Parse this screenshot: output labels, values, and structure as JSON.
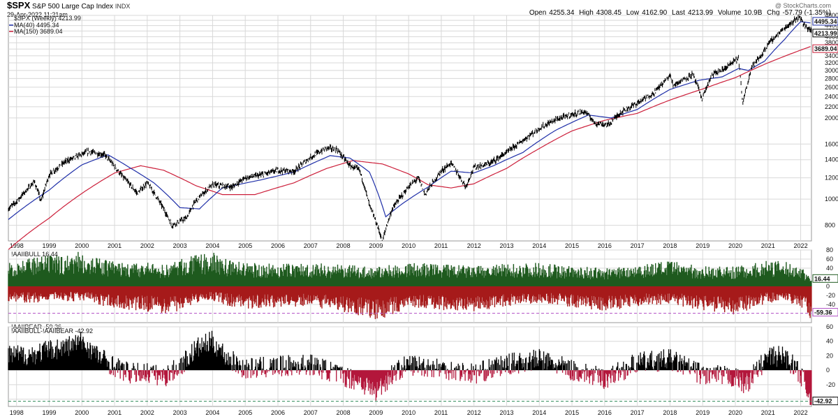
{
  "header": {
    "symbol": "$SPX",
    "name": "S&P 500 Large Cap Index",
    "exchange": "INDX",
    "datetime": "29-Apr-2022 11:21am",
    "watermark": "@ StockCharts.com",
    "ohlc": {
      "open_label": "Open",
      "open": "4255.34",
      "high_label": "High",
      "high": "4308.45",
      "low_label": "Low",
      "low": "4162.90",
      "last_label": "Last",
      "last": "4213.99",
      "volume_label": "Volume",
      "volume": "10.9B",
      "chg_label": "Chg",
      "chg": "-57.79 (-1.35%)"
    }
  },
  "colors": {
    "price": "#000000",
    "ma40": "#1f2fa8",
    "ma150": "#cc1f3a",
    "bull": "#1e5a1e",
    "bear": "#a61a1a",
    "spread_pos": "#000000",
    "spread_neg": "#b3163b",
    "grid": "#d8d8d8",
    "dash_purple": "#b14fc5",
    "dash_green": "#2e8b57"
  },
  "chart_data": [
    {
      "type": "line",
      "panel": "price",
      "scale": "log",
      "ylim": [
        700,
        4800
      ],
      "yticks": [
        800,
        1000,
        1200,
        1400,
        1600,
        2000,
        2200,
        2400,
        2600,
        2800,
        3000,
        3200,
        3400,
        3600,
        3800,
        4000,
        4200,
        4400,
        4600,
        4800
      ],
      "x_years": [
        "1998",
        "1999",
        "2000",
        "2001",
        "2002",
        "2003",
        "2004",
        "2005",
        "2006",
        "2007",
        "2008",
        "2009",
        "2010",
        "2011",
        "2012",
        "2013",
        "2014",
        "2015",
        "2016",
        "2017",
        "2018",
        "2019",
        "2020",
        "2021",
        "2022"
      ],
      "legend": [
        {
          "label": "$SPX (Weekly) 4213.99"
        },
        {
          "label": "MA(40) 4495.34"
        },
        {
          "label": "MA(150) 3689.04"
        }
      ],
      "price_tags": {
        "ma40": "4495.34",
        "last": "4213.99",
        "ma150": "3689.04"
      },
      "series": [
        {
          "name": "$SPX (Weekly)",
          "x": [
            1997.75,
            1998.0,
            1998.55,
            1998.75,
            1999.0,
            1999.5,
            2000.2,
            2000.7,
            2001.2,
            2001.7,
            2002.0,
            2002.55,
            2002.75,
            2003.2,
            2003.5,
            2004.0,
            2004.6,
            2005.0,
            2005.5,
            2006.0,
            2006.5,
            2007.0,
            2007.5,
            2007.8,
            2008.2,
            2008.5,
            2008.8,
            2009.2,
            2009.5,
            2010.0,
            2010.3,
            2010.5,
            2011.0,
            2011.3,
            2011.75,
            2012.0,
            2012.5,
            2013.0,
            2013.5,
            2014.0,
            2014.5,
            2015.0,
            2015.4,
            2015.7,
            2016.1,
            2016.5,
            2017.0,
            2017.5,
            2018.0,
            2018.1,
            2018.7,
            2018.98,
            2019.3,
            2019.6,
            2020.1,
            2020.22,
            2020.5,
            2020.8,
            2021.0,
            2021.5,
            2021.98,
            2022.1,
            2022.33
          ],
          "values": [
            920,
            980,
            1160,
            980,
            1230,
            1380,
            1500,
            1460,
            1230,
            1050,
            1150,
            900,
            800,
            850,
            990,
            1130,
            1110,
            1200,
            1230,
            1280,
            1270,
            1430,
            1550,
            1530,
            1330,
            1280,
            950,
            700,
            920,
            1110,
            1200,
            1040,
            1270,
            1360,
            1110,
            1310,
            1360,
            1490,
            1650,
            1830,
            1970,
            2060,
            2110,
            1920,
            1880,
            2100,
            2270,
            2470,
            2870,
            2650,
            2900,
            2350,
            2900,
            3000,
            3330,
            2237,
            3100,
            3400,
            3760,
            4300,
            4766,
            4400,
            4213.99
          ]
        },
        {
          "name": "MA(40)",
          "x": [
            1997.75,
            1999.0,
            2000.0,
            2000.8,
            2001.5,
            2002.2,
            2003.0,
            2003.6,
            2004.3,
            2005.5,
            2006.5,
            2007.6,
            2008.2,
            2008.8,
            2009.3,
            2009.8,
            2010.6,
            2011.3,
            2012.0,
            2012.6,
            2013.5,
            2014.5,
            2015.5,
            2016.2,
            2017.0,
            2018.0,
            2018.9,
            2019.6,
            2020.1,
            2020.4,
            2020.9,
            2021.5,
            2022.0,
            2022.33
          ],
          "values": [
            840,
            1080,
            1340,
            1460,
            1300,
            1150,
            930,
            920,
            1100,
            1180,
            1260,
            1450,
            1420,
            1260,
            860,
            960,
            1110,
            1270,
            1250,
            1330,
            1490,
            1800,
            2050,
            2000,
            2150,
            2550,
            2760,
            2840,
            3050,
            3000,
            3250,
            3900,
            4550,
            4495.34
          ]
        },
        {
          "name": "MA(150)",
          "x": [
            1997.75,
            1999.0,
            2000.0,
            2001.0,
            2001.8,
            2002.5,
            2003.5,
            2004.3,
            2005.3,
            2006.5,
            2007.5,
            2008.3,
            2009.2,
            2010.0,
            2010.6,
            2011.3,
            2012.0,
            2013.0,
            2014.0,
            2015.0,
            2016.0,
            2017.0,
            2018.0,
            2019.0,
            2020.0,
            2021.0,
            2022.33
          ],
          "values": [
            650,
            850,
            1050,
            1250,
            1330,
            1280,
            1120,
            1040,
            1040,
            1150,
            1300,
            1390,
            1350,
            1240,
            1130,
            1100,
            1140,
            1300,
            1540,
            1790,
            1960,
            2080,
            2330,
            2560,
            2820,
            3200,
            3689.04
          ]
        }
      ]
    },
    {
      "type": "bar",
      "panel": "aaii-bull-bear",
      "ylim": [
        -80,
        80
      ],
      "yticks": [
        -40,
        -20,
        0,
        20,
        40,
        60,
        80
      ],
      "legend": [
        {
          "label": "!AAIIBULL 16.44"
        },
        {
          "label": "!AAIIBEAR -59.36"
        }
      ],
      "value_tags": {
        "bull": "16.44",
        "bear": "-59.36"
      },
      "series": [
        {
          "name": "!AAIIBULL",
          "x": [
            1997.75,
            1998.5,
            1999.0,
            1999.5,
            2000.0,
            2000.5,
            2001.0,
            2001.5,
            2002.0,
            2002.5,
            2003.0,
            2003.5,
            2004.0,
            2004.5,
            2005.0,
            2006.0,
            2007.0,
            2008.0,
            2009.0,
            2010.0,
            2011.0,
            2012.0,
            2013.0,
            2014.0,
            2015.0,
            2016.0,
            2017.0,
            2018.0,
            2019.0,
            2020.0,
            2021.0,
            2021.5,
            2022.0,
            2022.33
          ],
          "values": [
            48,
            50,
            55,
            56,
            62,
            50,
            45,
            40,
            42,
            38,
            48,
            55,
            60,
            48,
            42,
            40,
            42,
            38,
            35,
            42,
            40,
            36,
            40,
            42,
            36,
            32,
            40,
            45,
            36,
            35,
            46,
            44,
            36,
            16.44
          ]
        },
        {
          "name": "!AAIIBEAR",
          "x": [
            1997.75,
            1998.5,
            1999.0,
            1999.5,
            2000.0,
            2000.5,
            2001.0,
            2001.5,
            2002.0,
            2002.5,
            2003.0,
            2003.5,
            2004.0,
            2004.5,
            2005.0,
            2006.0,
            2007.0,
            2008.0,
            2009.0,
            2010.0,
            2011.0,
            2012.0,
            2013.0,
            2014.0,
            2015.0,
            2016.0,
            2017.0,
            2018.0,
            2019.0,
            2020.0,
            2021.0,
            2021.5,
            2022.0,
            2022.33
          ],
          "values": [
            -28,
            -30,
            -25,
            -28,
            -25,
            -35,
            -40,
            -42,
            -45,
            -48,
            -45,
            -30,
            -25,
            -35,
            -40,
            -38,
            -36,
            -45,
            -62,
            -38,
            -42,
            -45,
            -35,
            -30,
            -38,
            -45,
            -35,
            -32,
            -42,
            -50,
            -30,
            -28,
            -40,
            -59.36
          ]
        }
      ]
    },
    {
      "type": "bar",
      "panel": "aaii-spread",
      "ylim": [
        -50,
        60
      ],
      "yticks": [
        -40,
        -20,
        0,
        20,
        40,
        60
      ],
      "legend": [
        {
          "label": "!AAIIBULL-!AAIIBEAR -42.92"
        }
      ],
      "value_tags": {
        "spread": "-42.92"
      },
      "series": [
        {
          "name": "!AAIIBULL-!AAIIBEAR",
          "x": [
            1997.75,
            1998.5,
            1999.0,
            1999.5,
            2000.0,
            2000.5,
            2001.0,
            2001.5,
            2002.0,
            2002.5,
            2003.0,
            2003.5,
            2004.0,
            2004.5,
            2005.0,
            2006.0,
            2007.0,
            2008.0,
            2008.5,
            2009.0,
            2009.5,
            2010.0,
            2011.0,
            2012.0,
            2013.0,
            2014.0,
            2015.0,
            2016.0,
            2017.0,
            2018.0,
            2019.0,
            2020.0,
            2020.3,
            2021.0,
            2021.5,
            2022.0,
            2022.33
          ],
          "values": [
            20,
            22,
            28,
            32,
            40,
            20,
            5,
            -5,
            -3,
            -10,
            5,
            30,
            40,
            15,
            2,
            5,
            8,
            -8,
            -15,
            -30,
            -5,
            8,
            3,
            -5,
            8,
            15,
            0,
            -12,
            10,
            15,
            -6,
            -10,
            -20,
            18,
            20,
            -5,
            -42.92
          ]
        }
      ]
    }
  ]
}
